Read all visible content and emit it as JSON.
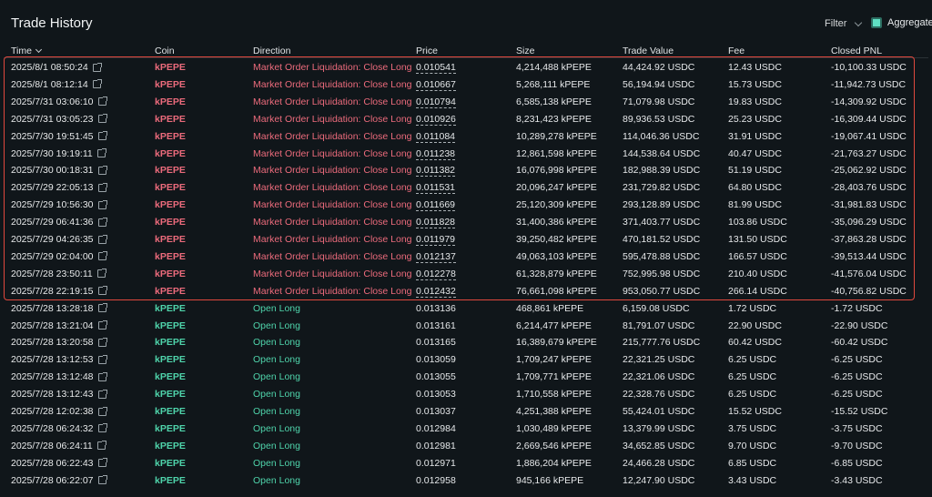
{
  "header": {
    "title": "Trade History",
    "filter_label": "Filter",
    "aggregate_label": "Aggregate"
  },
  "columns": {
    "time": "Time",
    "coin": "Coin",
    "direction": "Direction",
    "price": "Price",
    "size": "Size",
    "trade_value": "Trade Value",
    "fee": "Fee",
    "closed_pnl": "Closed PNL"
  },
  "colors": {
    "liquidation": "#ec6b7c",
    "open_long": "#4fd4ab",
    "highlight_border": "#e0483d",
    "aggregate_checkbox": "#5fe0c3"
  },
  "rows": [
    {
      "time": "2025/8/1 08:50:24",
      "coin": "kPEPE",
      "direction": "Market Order Liquidation: Close Long",
      "price": "0.010541",
      "size": "4,214,488 kPEPE",
      "value": "44,424.92 USDC",
      "fee": "12.43 USDC",
      "pnl": "-10,100.33 USDC",
      "type": "liq"
    },
    {
      "time": "2025/8/1 08:12:14",
      "coin": "kPEPE",
      "direction": "Market Order Liquidation: Close Long",
      "price": "0.010667",
      "size": "5,268,111 kPEPE",
      "value": "56,194.94 USDC",
      "fee": "15.73 USDC",
      "pnl": "-11,942.73 USDC",
      "type": "liq"
    },
    {
      "time": "2025/7/31 03:06:10",
      "coin": "kPEPE",
      "direction": "Market Order Liquidation: Close Long",
      "price": "0.010794",
      "size": "6,585,138 kPEPE",
      "value": "71,079.98 USDC",
      "fee": "19.83 USDC",
      "pnl": "-14,309.92 USDC",
      "type": "liq"
    },
    {
      "time": "2025/7/31 03:05:23",
      "coin": "kPEPE",
      "direction": "Market Order Liquidation: Close Long",
      "price": "0.010926",
      "size": "8,231,423 kPEPE",
      "value": "89,936.53 USDC",
      "fee": "25.23 USDC",
      "pnl": "-16,309.44 USDC",
      "type": "liq"
    },
    {
      "time": "2025/7/30 19:51:45",
      "coin": "kPEPE",
      "direction": "Market Order Liquidation: Close Long",
      "price": "0.011084",
      "size": "10,289,278 kPEPE",
      "value": "114,046.36 USDC",
      "fee": "31.91 USDC",
      "pnl": "-19,067.41 USDC",
      "type": "liq"
    },
    {
      "time": "2025/7/30 19:19:11",
      "coin": "kPEPE",
      "direction": "Market Order Liquidation: Close Long",
      "price": "0.011238",
      "size": "12,861,598 kPEPE",
      "value": "144,538.64 USDC",
      "fee": "40.47 USDC",
      "pnl": "-21,763.27 USDC",
      "type": "liq"
    },
    {
      "time": "2025/7/30 00:18:31",
      "coin": "kPEPE",
      "direction": "Market Order Liquidation: Close Long",
      "price": "0.011382",
      "size": "16,076,998 kPEPE",
      "value": "182,988.39 USDC",
      "fee": "51.19 USDC",
      "pnl": "-25,062.92 USDC",
      "type": "liq"
    },
    {
      "time": "2025/7/29 22:05:13",
      "coin": "kPEPE",
      "direction": "Market Order Liquidation: Close Long",
      "price": "0.011531",
      "size": "20,096,247 kPEPE",
      "value": "231,729.82 USDC",
      "fee": "64.80 USDC",
      "pnl": "-28,403.76 USDC",
      "type": "liq"
    },
    {
      "time": "2025/7/29 10:56:30",
      "coin": "kPEPE",
      "direction": "Market Order Liquidation: Close Long",
      "price": "0.011669",
      "size": "25,120,309 kPEPE",
      "value": "293,128.89 USDC",
      "fee": "81.99 USDC",
      "pnl": "-31,981.83 USDC",
      "type": "liq"
    },
    {
      "time": "2025/7/29 06:41:36",
      "coin": "kPEPE",
      "direction": "Market Order Liquidation: Close Long",
      "price": "0.011828",
      "size": "31,400,386 kPEPE",
      "value": "371,403.77 USDC",
      "fee": "103.86 USDC",
      "pnl": "-35,096.29 USDC",
      "type": "liq"
    },
    {
      "time": "2025/7/29 04:26:35",
      "coin": "kPEPE",
      "direction": "Market Order Liquidation: Close Long",
      "price": "0.011979",
      "size": "39,250,482 kPEPE",
      "value": "470,181.52 USDC",
      "fee": "131.50 USDC",
      "pnl": "-37,863.28 USDC",
      "type": "liq"
    },
    {
      "time": "2025/7/29 02:04:00",
      "coin": "kPEPE",
      "direction": "Market Order Liquidation: Close Long",
      "price": "0.012137",
      "size": "49,063,103 kPEPE",
      "value": "595,478.88 USDC",
      "fee": "166.57 USDC",
      "pnl": "-39,513.44 USDC",
      "type": "liq"
    },
    {
      "time": "2025/7/28 23:50:11",
      "coin": "kPEPE",
      "direction": "Market Order Liquidation: Close Long",
      "price": "0.012278",
      "size": "61,328,879 kPEPE",
      "value": "752,995.98 USDC",
      "fee": "210.40 USDC",
      "pnl": "-41,576.04 USDC",
      "type": "liq"
    },
    {
      "time": "2025/7/28 22:19:15",
      "coin": "kPEPE",
      "direction": "Market Order Liquidation: Close Long",
      "price": "0.012432",
      "size": "76,661,098 kPEPE",
      "value": "953,050.77 USDC",
      "fee": "266.14 USDC",
      "pnl": "-40,756.82 USDC",
      "type": "liq"
    },
    {
      "time": "2025/7/28 13:28:18",
      "coin": "kPEPE",
      "direction": "Open Long",
      "price": "0.013136",
      "size": "468,861 kPEPE",
      "value": "6,159.08 USDC",
      "fee": "1.72 USDC",
      "pnl": "-1.72 USDC",
      "type": "open"
    },
    {
      "time": "2025/7/28 13:21:04",
      "coin": "kPEPE",
      "direction": "Open Long",
      "price": "0.013161",
      "size": "6,214,477 kPEPE",
      "value": "81,791.07 USDC",
      "fee": "22.90 USDC",
      "pnl": "-22.90 USDC",
      "type": "open"
    },
    {
      "time": "2025/7/28 13:20:58",
      "coin": "kPEPE",
      "direction": "Open Long",
      "price": "0.013165",
      "size": "16,389,679 kPEPE",
      "value": "215,777.76 USDC",
      "fee": "60.42 USDC",
      "pnl": "-60.42 USDC",
      "type": "open"
    },
    {
      "time": "2025/7/28 13:12:53",
      "coin": "kPEPE",
      "direction": "Open Long",
      "price": "0.013059",
      "size": "1,709,247 kPEPE",
      "value": "22,321.25 USDC",
      "fee": "6.25 USDC",
      "pnl": "-6.25 USDC",
      "type": "open"
    },
    {
      "time": "2025/7/28 13:12:48",
      "coin": "kPEPE",
      "direction": "Open Long",
      "price": "0.013055",
      "size": "1,709,771 kPEPE",
      "value": "22,321.06 USDC",
      "fee": "6.25 USDC",
      "pnl": "-6.25 USDC",
      "type": "open"
    },
    {
      "time": "2025/7/28 13:12:43",
      "coin": "kPEPE",
      "direction": "Open Long",
      "price": "0.013053",
      "size": "1,710,558 kPEPE",
      "value": "22,328.76 USDC",
      "fee": "6.25 USDC",
      "pnl": "-6.25 USDC",
      "type": "open"
    },
    {
      "time": "2025/7/28 12:02:38",
      "coin": "kPEPE",
      "direction": "Open Long",
      "price": "0.013037",
      "size": "4,251,388 kPEPE",
      "value": "55,424.01 USDC",
      "fee": "15.52 USDC",
      "pnl": "-15.52 USDC",
      "type": "open"
    },
    {
      "time": "2025/7/28 06:24:32",
      "coin": "kPEPE",
      "direction": "Open Long",
      "price": "0.012984",
      "size": "1,030,489 kPEPE",
      "value": "13,379.99 USDC",
      "fee": "3.75 USDC",
      "pnl": "-3.75 USDC",
      "type": "open"
    },
    {
      "time": "2025/7/28 06:24:11",
      "coin": "kPEPE",
      "direction": "Open Long",
      "price": "0.012981",
      "size": "2,669,546 kPEPE",
      "value": "34,652.85 USDC",
      "fee": "9.70 USDC",
      "pnl": "-9.70 USDC",
      "type": "open"
    },
    {
      "time": "2025/7/28 06:22:43",
      "coin": "kPEPE",
      "direction": "Open Long",
      "price": "0.012971",
      "size": "1,886,204 kPEPE",
      "value": "24,466.28 USDC",
      "fee": "6.85 USDC",
      "pnl": "-6.85 USDC",
      "type": "open"
    },
    {
      "time": "2025/7/28 06:22:07",
      "coin": "kPEPE",
      "direction": "Open Long",
      "price": "0.012958",
      "size": "945,166 kPEPE",
      "value": "12,247.90 USDC",
      "fee": "3.43 USDC",
      "pnl": "-3.43 USDC",
      "type": "open"
    }
  ]
}
